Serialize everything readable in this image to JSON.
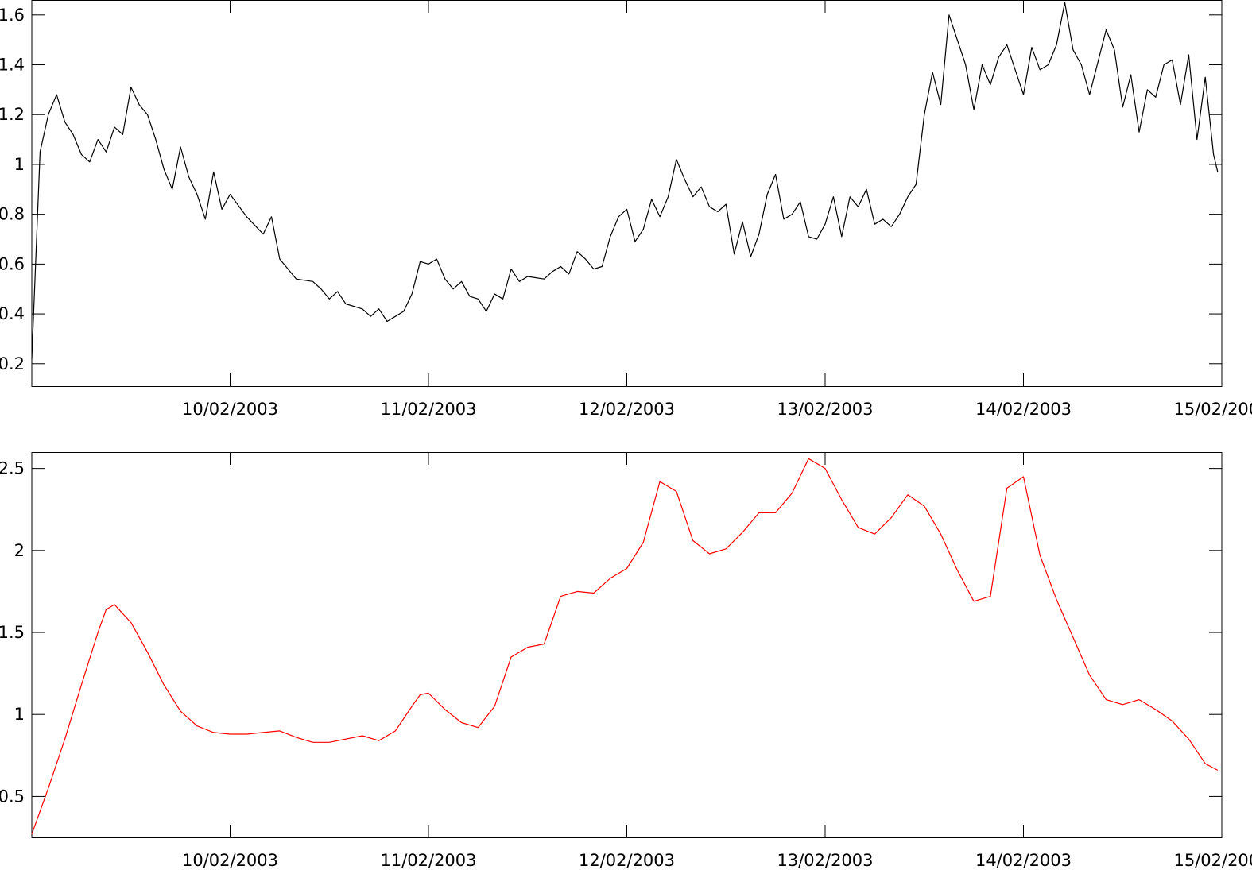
{
  "chart_data": [
    {
      "type": "line",
      "title": "",
      "xlabel": "",
      "ylabel": "",
      "xlim": [
        "09/02/2003 00:00",
        "15/02/2003 00:00"
      ],
      "ylim": [
        0.11,
        1.66
      ],
      "grid": false,
      "x_ticks": [
        "10/02/2003",
        "11/02/2003",
        "12/02/2003",
        "13/02/2003",
        "14/02/2003",
        "15/02/2003"
      ],
      "y_ticks": [
        "0.2",
        "0.4",
        "0.6",
        "0.8",
        "1",
        "1.2",
        "1.4",
        "1.6"
      ],
      "series": [
        {
          "color": "#000000",
          "points": [
            [
              "09/02/2003 00:00",
              0.22
            ],
            [
              "09/02/2003 01:00",
              1.05
            ],
            [
              "09/02/2003 02:00",
              1.2
            ],
            [
              "09/02/2003 03:00",
              1.28
            ],
            [
              "09/02/2003 04:00",
              1.17
            ],
            [
              "09/02/2003 05:00",
              1.12
            ],
            [
              "09/02/2003 06:00",
              1.04
            ],
            [
              "09/02/2003 07:00",
              1.01
            ],
            [
              "09/02/2003 08:00",
              1.1
            ],
            [
              "09/02/2003 09:00",
              1.05
            ],
            [
              "09/02/2003 10:00",
              1.15
            ],
            [
              "09/02/2003 11:00",
              1.12
            ],
            [
              "09/02/2003 12:00",
              1.31
            ],
            [
              "09/02/2003 13:00",
              1.24
            ],
            [
              "09/02/2003 14:00",
              1.2
            ],
            [
              "09/02/2003 15:00",
              1.1
            ],
            [
              "09/02/2003 16:00",
              0.98
            ],
            [
              "09/02/2003 17:00",
              0.9
            ],
            [
              "09/02/2003 18:00",
              1.07
            ],
            [
              "09/02/2003 19:00",
              0.95
            ],
            [
              "09/02/2003 20:00",
              0.88
            ],
            [
              "09/02/2003 21:00",
              0.78
            ],
            [
              "09/02/2003 22:00",
              0.97
            ],
            [
              "09/02/2003 23:00",
              0.82
            ],
            [
              "10/02/2003 00:00",
              0.88
            ],
            [
              "10/02/2003 02:00",
              0.79
            ],
            [
              "10/02/2003 04:00",
              0.72
            ],
            [
              "10/02/2003 05:00",
              0.79
            ],
            [
              "10/02/2003 06:00",
              0.62
            ],
            [
              "10/02/2003 07:00",
              0.58
            ],
            [
              "10/02/2003 08:00",
              0.54
            ],
            [
              "10/02/2003 10:00",
              0.53
            ],
            [
              "10/02/2003 11:00",
              0.5
            ],
            [
              "10/02/2003 12:00",
              0.46
            ],
            [
              "10/02/2003 13:00",
              0.49
            ],
            [
              "10/02/2003 14:00",
              0.44
            ],
            [
              "10/02/2003 16:00",
              0.42
            ],
            [
              "10/02/2003 17:00",
              0.39
            ],
            [
              "10/02/2003 18:00",
              0.42
            ],
            [
              "10/02/2003 19:00",
              0.37
            ],
            [
              "10/02/2003 20:00",
              0.39
            ],
            [
              "10/02/2003 21:00",
              0.41
            ],
            [
              "10/02/2003 22:00",
              0.48
            ],
            [
              "10/02/2003 23:00",
              0.61
            ],
            [
              "11/02/2003 00:00",
              0.6
            ],
            [
              "11/02/2003 01:00",
              0.62
            ],
            [
              "11/02/2003 02:00",
              0.54
            ],
            [
              "11/02/2003 03:00",
              0.5
            ],
            [
              "11/02/2003 04:00",
              0.53
            ],
            [
              "11/02/2003 05:00",
              0.47
            ],
            [
              "11/02/2003 06:00",
              0.46
            ],
            [
              "11/02/2003 07:00",
              0.41
            ],
            [
              "11/02/2003 08:00",
              0.48
            ],
            [
              "11/02/2003 09:00",
              0.46
            ],
            [
              "11/02/2003 10:00",
              0.58
            ],
            [
              "11/02/2003 11:00",
              0.53
            ],
            [
              "11/02/2003 12:00",
              0.55
            ],
            [
              "11/02/2003 14:00",
              0.54
            ],
            [
              "11/02/2003 15:00",
              0.57
            ],
            [
              "11/02/2003 16:00",
              0.59
            ],
            [
              "11/02/2003 17:00",
              0.56
            ],
            [
              "11/02/2003 18:00",
              0.65
            ],
            [
              "11/02/2003 19:00",
              0.62
            ],
            [
              "11/02/2003 20:00",
              0.58
            ],
            [
              "11/02/2003 21:00",
              0.59
            ],
            [
              "11/02/2003 22:00",
              0.71
            ],
            [
              "11/02/2003 23:00",
              0.79
            ],
            [
              "12/02/2003 00:00",
              0.82
            ],
            [
              "12/02/2003 01:00",
              0.69
            ],
            [
              "12/02/2003 02:00",
              0.74
            ],
            [
              "12/02/2003 03:00",
              0.86
            ],
            [
              "12/02/2003 04:00",
              0.79
            ],
            [
              "12/02/2003 05:00",
              0.87
            ],
            [
              "12/02/2003 06:00",
              1.02
            ],
            [
              "12/02/2003 07:00",
              0.94
            ],
            [
              "12/02/2003 08:00",
              0.87
            ],
            [
              "12/02/2003 09:00",
              0.91
            ],
            [
              "12/02/2003 10:00",
              0.83
            ],
            [
              "12/02/2003 11:00",
              0.81
            ],
            [
              "12/02/2003 12:00",
              0.84
            ],
            [
              "12/02/2003 13:00",
              0.64
            ],
            [
              "12/02/2003 14:00",
              0.77
            ],
            [
              "12/02/2003 15:00",
              0.63
            ],
            [
              "12/02/2003 16:00",
              0.72
            ],
            [
              "12/02/2003 17:00",
              0.88
            ],
            [
              "12/02/2003 18:00",
              0.96
            ],
            [
              "12/02/2003 19:00",
              0.78
            ],
            [
              "12/02/2003 20:00",
              0.8
            ],
            [
              "12/02/2003 21:00",
              0.85
            ],
            [
              "12/02/2003 22:00",
              0.71
            ],
            [
              "12/02/2003 23:00",
              0.7
            ],
            [
              "13/02/2003 00:00",
              0.76
            ],
            [
              "13/02/2003 01:00",
              0.87
            ],
            [
              "13/02/2003 02:00",
              0.71
            ],
            [
              "13/02/2003 03:00",
              0.87
            ],
            [
              "13/02/2003 04:00",
              0.83
            ],
            [
              "13/02/2003 05:00",
              0.9
            ],
            [
              "13/02/2003 06:00",
              0.76
            ],
            [
              "13/02/2003 07:00",
              0.78
            ],
            [
              "13/02/2003 08:00",
              0.75
            ],
            [
              "13/02/2003 09:00",
              0.8
            ],
            [
              "13/02/2003 10:00",
              0.87
            ],
            [
              "13/02/2003 11:00",
              0.92
            ],
            [
              "13/02/2003 12:00",
              1.2
            ],
            [
              "13/02/2003 13:00",
              1.37
            ],
            [
              "13/02/2003 14:00",
              1.24
            ],
            [
              "13/02/2003 15:00",
              1.6
            ],
            [
              "13/02/2003 16:00",
              1.5
            ],
            [
              "13/02/2003 17:00",
              1.4
            ],
            [
              "13/02/2003 18:00",
              1.22
            ],
            [
              "13/02/2003 19:00",
              1.4
            ],
            [
              "13/02/2003 20:00",
              1.32
            ],
            [
              "13/02/2003 21:00",
              1.43
            ],
            [
              "13/02/2003 22:00",
              1.48
            ],
            [
              "13/02/2003 23:00",
              1.38
            ],
            [
              "14/02/2003 00:00",
              1.28
            ],
            [
              "14/02/2003 01:00",
              1.47
            ],
            [
              "14/02/2003 02:00",
              1.38
            ],
            [
              "14/02/2003 03:00",
              1.4
            ],
            [
              "14/02/2003 04:00",
              1.48
            ],
            [
              "14/02/2003 05:00",
              1.65
            ],
            [
              "14/02/2003 06:00",
              1.46
            ],
            [
              "14/02/2003 07:00",
              1.4
            ],
            [
              "14/02/2003 08:00",
              1.28
            ],
            [
              "14/02/2003 09:00",
              1.41
            ],
            [
              "14/02/2003 10:00",
              1.54
            ],
            [
              "14/02/2003 11:00",
              1.46
            ],
            [
              "14/02/2003 12:00",
              1.23
            ],
            [
              "14/02/2003 13:00",
              1.36
            ],
            [
              "14/02/2003 14:00",
              1.13
            ],
            [
              "14/02/2003 15:00",
              1.3
            ],
            [
              "14/02/2003 16:00",
              1.27
            ],
            [
              "14/02/2003 17:00",
              1.4
            ],
            [
              "14/02/2003 18:00",
              1.42
            ],
            [
              "14/02/2003 19:00",
              1.24
            ],
            [
              "14/02/2003 20:00",
              1.44
            ],
            [
              "14/02/2003 21:00",
              1.1
            ],
            [
              "14/02/2003 22:00",
              1.35
            ],
            [
              "14/02/2003 23:00",
              1.04
            ],
            [
              "14/02/2003 23:30",
              0.97
            ]
          ]
        }
      ]
    },
    {
      "type": "line",
      "title": "",
      "xlabel": "",
      "ylabel": "",
      "xlim": [
        "09/02/2003 00:00",
        "15/02/2003 00:00"
      ],
      "ylim": [
        0.25,
        2.6
      ],
      "grid": false,
      "x_ticks": [
        "10/02/2003",
        "11/02/2003",
        "12/02/2003",
        "13/02/2003",
        "14/02/2003",
        "15/02/2003"
      ],
      "y_ticks": [
        "0.5",
        "1",
        "1.5",
        "2",
        "2.5"
      ],
      "series": [
        {
          "color": "#ff0000",
          "points": [
            [
              "09/02/2003 00:00",
              0.27
            ],
            [
              "09/02/2003 02:00",
              0.55
            ],
            [
              "09/02/2003 04:00",
              0.85
            ],
            [
              "09/02/2003 06:00",
              1.18
            ],
            [
              "09/02/2003 08:00",
              1.5
            ],
            [
              "09/02/2003 09:00",
              1.64
            ],
            [
              "09/02/2003 10:00",
              1.67
            ],
            [
              "09/02/2003 12:00",
              1.56
            ],
            [
              "09/02/2003 14:00",
              1.38
            ],
            [
              "09/02/2003 16:00",
              1.18
            ],
            [
              "09/02/2003 18:00",
              1.02
            ],
            [
              "09/02/2003 20:00",
              0.93
            ],
            [
              "09/02/2003 22:00",
              0.89
            ],
            [
              "10/02/2003 00:00",
              0.88
            ],
            [
              "10/02/2003 02:00",
              0.88
            ],
            [
              "10/02/2003 04:00",
              0.89
            ],
            [
              "10/02/2003 06:00",
              0.9
            ],
            [
              "10/02/2003 08:00",
              0.86
            ],
            [
              "10/02/2003 10:00",
              0.83
            ],
            [
              "10/02/2003 12:00",
              0.83
            ],
            [
              "10/02/2003 14:00",
              0.85
            ],
            [
              "10/02/2003 16:00",
              0.87
            ],
            [
              "10/02/2003 18:00",
              0.84
            ],
            [
              "10/02/2003 20:00",
              0.9
            ],
            [
              "10/02/2003 22:00",
              1.05
            ],
            [
              "10/02/2003 23:00",
              1.12
            ],
            [
              "11/02/2003 00:00",
              1.13
            ],
            [
              "11/02/2003 02:00",
              1.03
            ],
            [
              "11/02/2003 04:00",
              0.95
            ],
            [
              "11/02/2003 06:00",
              0.92
            ],
            [
              "11/02/2003 08:00",
              1.05
            ],
            [
              "11/02/2003 10:00",
              1.35
            ],
            [
              "11/02/2003 12:00",
              1.41
            ],
            [
              "11/02/2003 14:00",
              1.43
            ],
            [
              "11/02/2003 16:00",
              1.72
            ],
            [
              "11/02/2003 18:00",
              1.75
            ],
            [
              "11/02/2003 20:00",
              1.74
            ],
            [
              "11/02/2003 22:00",
              1.83
            ],
            [
              "12/02/2003 00:00",
              1.89
            ],
            [
              "12/02/2003 02:00",
              2.05
            ],
            [
              "12/02/2003 04:00",
              2.42
            ],
            [
              "12/02/2003 06:00",
              2.36
            ],
            [
              "12/02/2003 08:00",
              2.06
            ],
            [
              "12/02/2003 10:00",
              1.98
            ],
            [
              "12/02/2003 12:00",
              2.01
            ],
            [
              "12/02/2003 14:00",
              2.11
            ],
            [
              "12/02/2003 16:00",
              2.23
            ],
            [
              "12/02/2003 18:00",
              2.23
            ],
            [
              "12/02/2003 20:00",
              2.35
            ],
            [
              "12/02/2003 22:00",
              2.56
            ],
            [
              "13/02/2003 00:00",
              2.5
            ],
            [
              "13/02/2003 02:00",
              2.31
            ],
            [
              "13/02/2003 04:00",
              2.14
            ],
            [
              "13/02/2003 06:00",
              2.1
            ],
            [
              "13/02/2003 08:00",
              2.2
            ],
            [
              "13/02/2003 10:00",
              2.34
            ],
            [
              "13/02/2003 12:00",
              2.27
            ],
            [
              "13/02/2003 14:00",
              2.1
            ],
            [
              "13/02/2003 16:00",
              1.88
            ],
            [
              "13/02/2003 18:00",
              1.69
            ],
            [
              "13/02/2003 20:00",
              1.72
            ],
            [
              "13/02/2003 22:00",
              2.38
            ],
            [
              "14/02/2003 00:00",
              2.45
            ],
            [
              "14/02/2003 02:00",
              1.97
            ],
            [
              "14/02/2003 04:00",
              1.7
            ],
            [
              "14/02/2003 06:00",
              1.47
            ],
            [
              "14/02/2003 08:00",
              1.24
            ],
            [
              "14/02/2003 10:00",
              1.09
            ],
            [
              "14/02/2003 12:00",
              1.06
            ],
            [
              "14/02/2003 14:00",
              1.09
            ],
            [
              "14/02/2003 16:00",
              1.03
            ],
            [
              "14/02/2003 18:00",
              0.96
            ],
            [
              "14/02/2003 20:00",
              0.85
            ],
            [
              "14/02/2003 22:00",
              0.7
            ],
            [
              "14/02/2003 23:30",
              0.66
            ]
          ]
        }
      ]
    }
  ]
}
